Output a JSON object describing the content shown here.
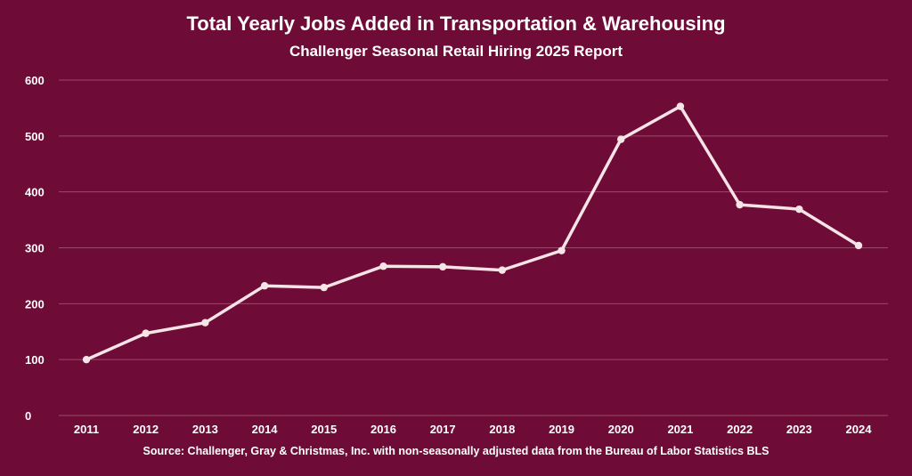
{
  "title": "Total Yearly Jobs Added in Transportation & Warehousing",
  "subtitle": "Challenger Seasonal Retail Hiring 2025 Report",
  "source": "Source: Challenger, Gray & Christmas, Inc. with non-seasonally adjusted data from the Bureau of Labor Statistics BLS",
  "colors": {
    "background": "#6e0c37",
    "line": "#f7e4e6",
    "grid": "#9a4a6c",
    "text": "#ffffff"
  },
  "chart_data": {
    "type": "line",
    "title": "Total Yearly Jobs Added in Transportation & Warehousing",
    "subtitle": "Challenger Seasonal Retail Hiring 2025 Report",
    "xlabel": "",
    "ylabel": "",
    "categories": [
      "2011",
      "2012",
      "2013",
      "2014",
      "2015",
      "2016",
      "2017",
      "2018",
      "2019",
      "2020",
      "2021",
      "2022",
      "2023",
      "2024"
    ],
    "series": [
      {
        "values": [
          100,
          147,
          166,
          232,
          229,
          267,
          266,
          260,
          295,
          494,
          553,
          377,
          369,
          304
        ]
      }
    ],
    "ylim": [
      0,
      600
    ],
    "yticks": [
      0,
      100,
      200,
      300,
      400,
      500,
      600
    ],
    "grid": true,
    "legend": "none"
  }
}
